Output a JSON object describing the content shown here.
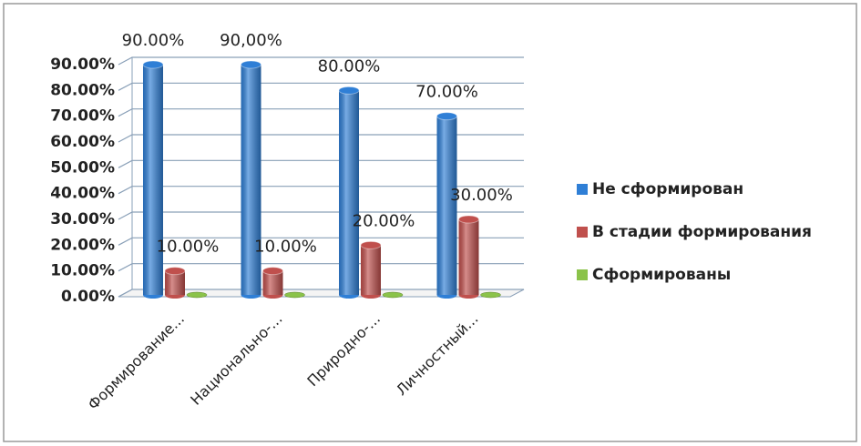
{
  "chart_data": {
    "type": "bar3d",
    "categories": [
      "Формирование...",
      "Национально-...",
      "Природно-...",
      "Личностный..."
    ],
    "series": [
      {
        "name": "Не сформирован",
        "color": "#2f7fd6",
        "values": [
          90,
          90,
          80,
          70
        ],
        "value_labels": [
          "90.00%",
          "90,00%",
          "80.00%",
          "70.00%"
        ]
      },
      {
        "name": "В стадии формирования",
        "color": "#c0504d",
        "values": [
          10,
          10,
          20,
          30
        ],
        "value_labels": [
          "10.00%",
          "10.00%",
          "20.00%",
          "30.00%"
        ]
      },
      {
        "name": "Сформированы",
        "color": "#8bc34a",
        "values": [
          0,
          0,
          0,
          0
        ]
      }
    ],
    "ylim": [
      0,
      90
    ],
    "yticks": [
      {
        "value": 0,
        "label": "0.00%"
      },
      {
        "value": 10,
        "label": "10.00%"
      },
      {
        "value": 20,
        "label": "20.00%"
      },
      {
        "value": 30,
        "label": "30.00%"
      },
      {
        "value": 40,
        "label": "40.00%"
      },
      {
        "value": 50,
        "label": "50.00%"
      },
      {
        "value": 60,
        "label": "60.00%"
      },
      {
        "value": 70,
        "label": "70.00%"
      },
      {
        "value": 80,
        "label": "80.00%"
      },
      {
        "value": 90,
        "label": "90.00%"
      }
    ],
    "grid": true,
    "legend": "right"
  }
}
